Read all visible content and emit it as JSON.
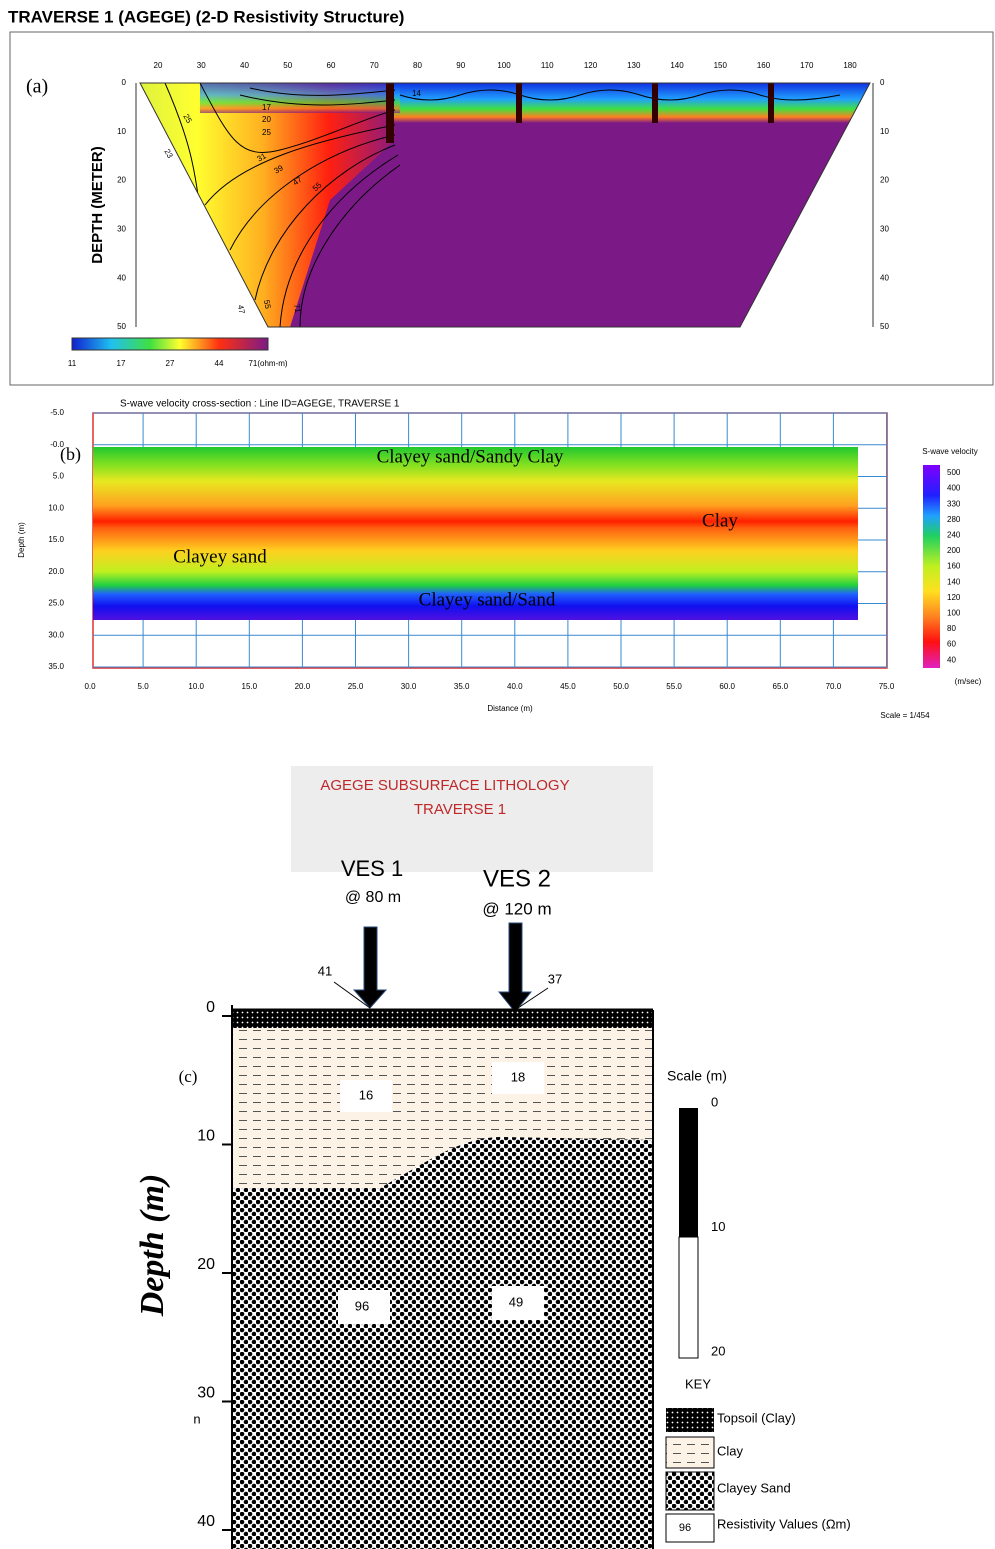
{
  "panel_a": {
    "title": "TRAVERSE 1 (AGEGE) (2-D Resistivity Structure)",
    "label": "(a)",
    "y_axis_label": "DEPTH (METER)",
    "distance_ticks": [
      "20",
      "30",
      "40",
      "50",
      "60",
      "70",
      "80",
      "90",
      "100",
      "110",
      "120",
      "130",
      "140",
      "150",
      "160",
      "170",
      "180"
    ],
    "depth_ticks": [
      "0",
      "10",
      "20",
      "30",
      "40",
      "50"
    ],
    "colorbar_labels": [
      "11",
      "17",
      "27",
      "44",
      "71(ohm-m)"
    ],
    "contour_labels": [
      "25",
      "23",
      "31",
      "39",
      "47",
      "55",
      "47",
      "55",
      "71",
      "14",
      "17",
      "20",
      "25"
    ]
  },
  "panel_b": {
    "title": "S-wave velocity cross-section : Line ID=AGEGE, TRAVERSE 1",
    "label": "(b)",
    "depth_ticks": [
      "-5.0",
      "-0.0",
      "5.0",
      "10.0",
      "15.0",
      "20.0",
      "25.0",
      "30.0",
      "35.0"
    ],
    "distance_ticks": [
      "0.0",
      "5.0",
      "10.0",
      "15.0",
      "20.0",
      "25.0",
      "30.0",
      "35.0",
      "40.0",
      "45.0",
      "50.0",
      "55.0",
      "60.0",
      "65.0",
      "70.0",
      "75.0"
    ],
    "y_axis_label": "Depth (m)",
    "x_axis_label": "Distance (m)",
    "scale": "Scale = 1/454",
    "legend_title": "S-wave velocity",
    "legend_labels": [
      "500",
      "400",
      "330",
      "280",
      "240",
      "200",
      "160",
      "140",
      "120",
      "100",
      "80",
      "60",
      "40"
    ],
    "legend_unit": "(m/sec)",
    "layers": [
      "Clayey sand/Sandy Clay",
      "Clay",
      "Clayey sand",
      "Clayey sand/Sand"
    ]
  },
  "panel_c": {
    "title_lines": [
      "AGEGE SUBSURFACE  LITHOLOGY",
      "TRAVERSE 1"
    ],
    "label": "(c)",
    "soundings": [
      {
        "name": "VES 1",
        "position": "@ 80 m",
        "topsoil_resistivity": "41"
      },
      {
        "name": "VES 2",
        "position": "@ 120 m",
        "topsoil_resistivity": "37"
      }
    ],
    "depth_ticks": [
      "0",
      "10",
      "20",
      "30",
      "40"
    ],
    "y_axis_label": "Depth (m)",
    "resistivity_values": [
      "16",
      "18",
      "96",
      "49"
    ],
    "stray_mark": "n",
    "scale_title": "Scale (m)",
    "scale_ticks": [
      "0",
      "10",
      "20"
    ],
    "key_title": "KEY",
    "key": [
      "Topsoil (Clay)",
      "Clay",
      "Clayey Sand",
      "Resistivity Values (Ωm)"
    ],
    "key_sample_value": "96"
  }
}
